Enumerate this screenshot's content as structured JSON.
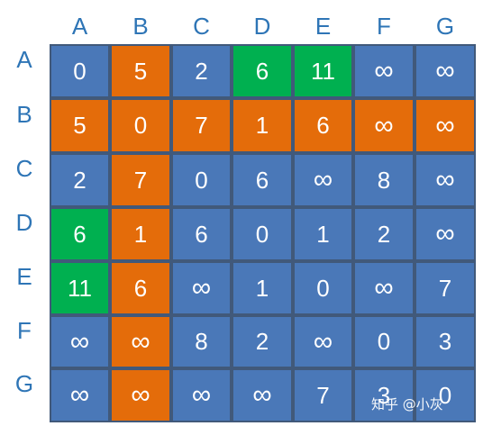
{
  "colors": {
    "blue": "#4a78b8",
    "orange": "#e46c0a",
    "green": "#00b050",
    "label": "#2e75b6"
  },
  "column_labels": [
    "A",
    "B",
    "C",
    "D",
    "E",
    "F",
    "G"
  ],
  "row_labels": [
    "A",
    "B",
    "C",
    "D",
    "E",
    "F",
    "G"
  ],
  "matrix": [
    [
      "0",
      "5",
      "2",
      "6",
      "11",
      "∞",
      "∞"
    ],
    [
      "5",
      "0",
      "7",
      "1",
      "6",
      "∞",
      "∞"
    ],
    [
      "2",
      "7",
      "0",
      "6",
      "∞",
      "8",
      "∞"
    ],
    [
      "6",
      "1",
      "6",
      "0",
      "1",
      "2",
      "∞"
    ],
    [
      "11",
      "6",
      "∞",
      "1",
      "0",
      "∞",
      "7"
    ],
    [
      "∞",
      "∞",
      "8",
      "2",
      "∞",
      "0",
      "3"
    ],
    [
      "∞",
      "∞",
      "∞",
      "∞",
      "7",
      "3",
      "0"
    ]
  ],
  "cell_colors": [
    [
      "blue",
      "orange",
      "blue",
      "green",
      "green",
      "blue",
      "blue"
    ],
    [
      "orange",
      "orange",
      "orange",
      "orange",
      "orange",
      "orange",
      "orange"
    ],
    [
      "blue",
      "orange",
      "blue",
      "blue",
      "blue",
      "blue",
      "blue"
    ],
    [
      "green",
      "orange",
      "blue",
      "blue",
      "blue",
      "blue",
      "blue"
    ],
    [
      "green",
      "orange",
      "blue",
      "blue",
      "blue",
      "blue",
      "blue"
    ],
    [
      "blue",
      "orange",
      "blue",
      "blue",
      "blue",
      "blue",
      "blue"
    ],
    [
      "blue",
      "orange",
      "blue",
      "blue",
      "blue",
      "blue",
      "blue"
    ]
  ],
  "watermark": "知乎 @小灰"
}
